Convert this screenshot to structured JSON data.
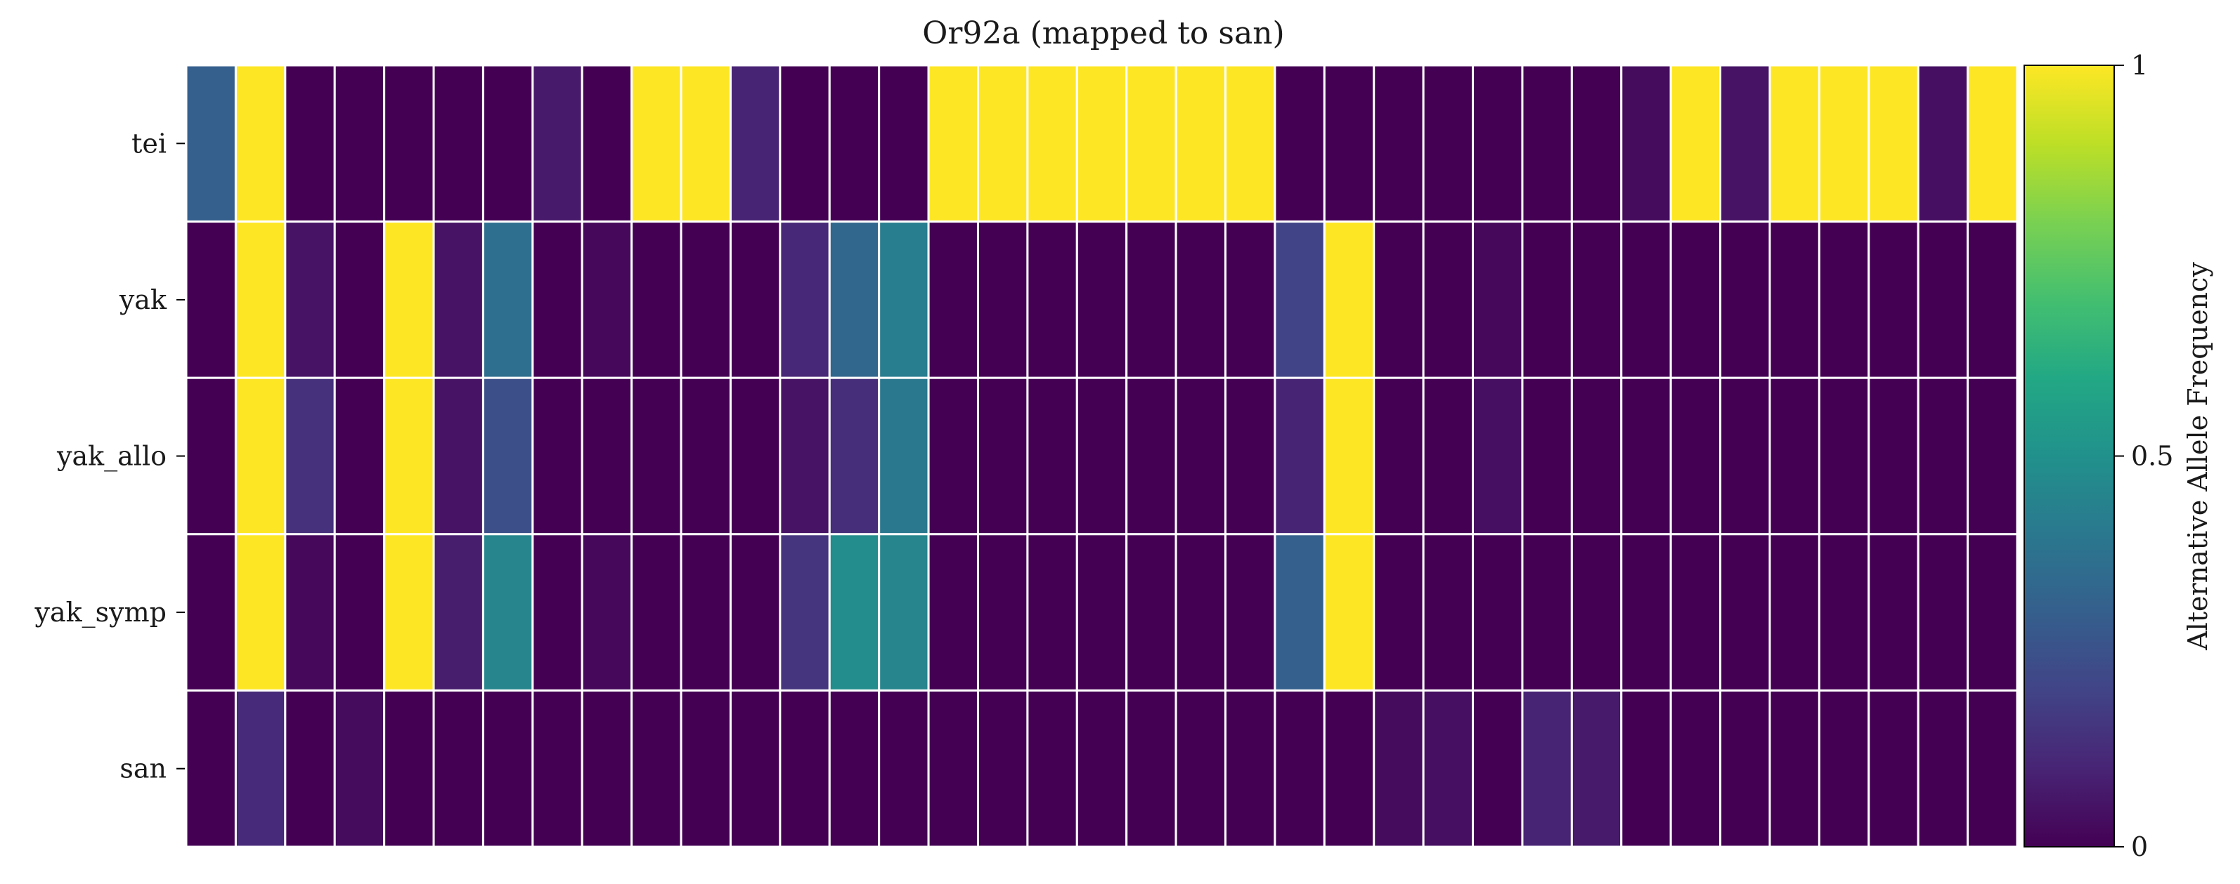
{
  "chart_data": {
    "type": "heatmap",
    "title": "Or92a (mapped to san)",
    "rows": [
      "tei",
      "yak",
      "yak_allo",
      "yak_symp",
      "san"
    ],
    "values": [
      [
        0.3,
        1,
        0,
        0,
        0,
        0,
        0,
        0.07,
        0,
        1,
        1,
        0.1,
        0,
        0,
        0,
        1,
        1,
        1,
        1,
        1,
        1,
        1,
        0,
        0,
        0,
        0,
        0,
        0,
        0,
        0.03,
        1,
        0.05,
        1,
        1,
        1,
        0.04,
        1
      ],
      [
        0,
        1,
        0.05,
        0,
        1,
        0.05,
        0.36,
        0,
        0.02,
        0,
        0,
        0,
        0.11,
        0.33,
        0.42,
        0,
        0,
        0,
        0,
        0,
        0,
        0,
        0.2,
        1,
        0,
        0,
        0.02,
        0,
        0,
        0,
        0,
        0,
        0,
        0,
        0,
        0,
        0
      ],
      [
        0,
        1,
        0.14,
        0,
        1,
        0.05,
        0.24,
        0,
        0,
        0,
        0,
        0,
        0.05,
        0.13,
        0.4,
        0,
        0,
        0,
        0,
        0,
        0,
        0,
        0.1,
        1,
        0,
        0,
        0.04,
        0,
        0,
        0,
        0,
        0,
        0,
        0,
        0,
        0,
        0
      ],
      [
        0,
        1,
        0.02,
        0,
        1,
        0.08,
        0.45,
        0,
        0.02,
        0,
        0,
        0,
        0.15,
        0.48,
        0.45,
        0,
        0,
        0,
        0,
        0,
        0,
        0,
        0.3,
        1,
        0,
        0,
        0,
        0,
        0,
        0,
        0,
        0,
        0,
        0,
        0,
        0,
        0
      ],
      [
        0,
        0.12,
        0,
        0.03,
        0,
        0,
        0,
        0,
        0,
        0,
        0,
        0,
        0,
        0,
        0,
        0,
        0,
        0,
        0,
        0,
        0,
        0,
        0,
        0,
        0.03,
        0.04,
        0,
        0.1,
        0.07,
        0,
        0,
        0,
        0,
        0,
        0,
        0,
        0
      ]
    ],
    "colorscale": "viridis",
    "colorbar": {
      "label": "Alternative Allele Frequency",
      "ticks": [
        0,
        0.5,
        1
      ],
      "tick_labels": [
        "0",
        "0.5",
        "1"
      ],
      "range": [
        0,
        1
      ]
    },
    "grid_color": "#ffffff"
  }
}
